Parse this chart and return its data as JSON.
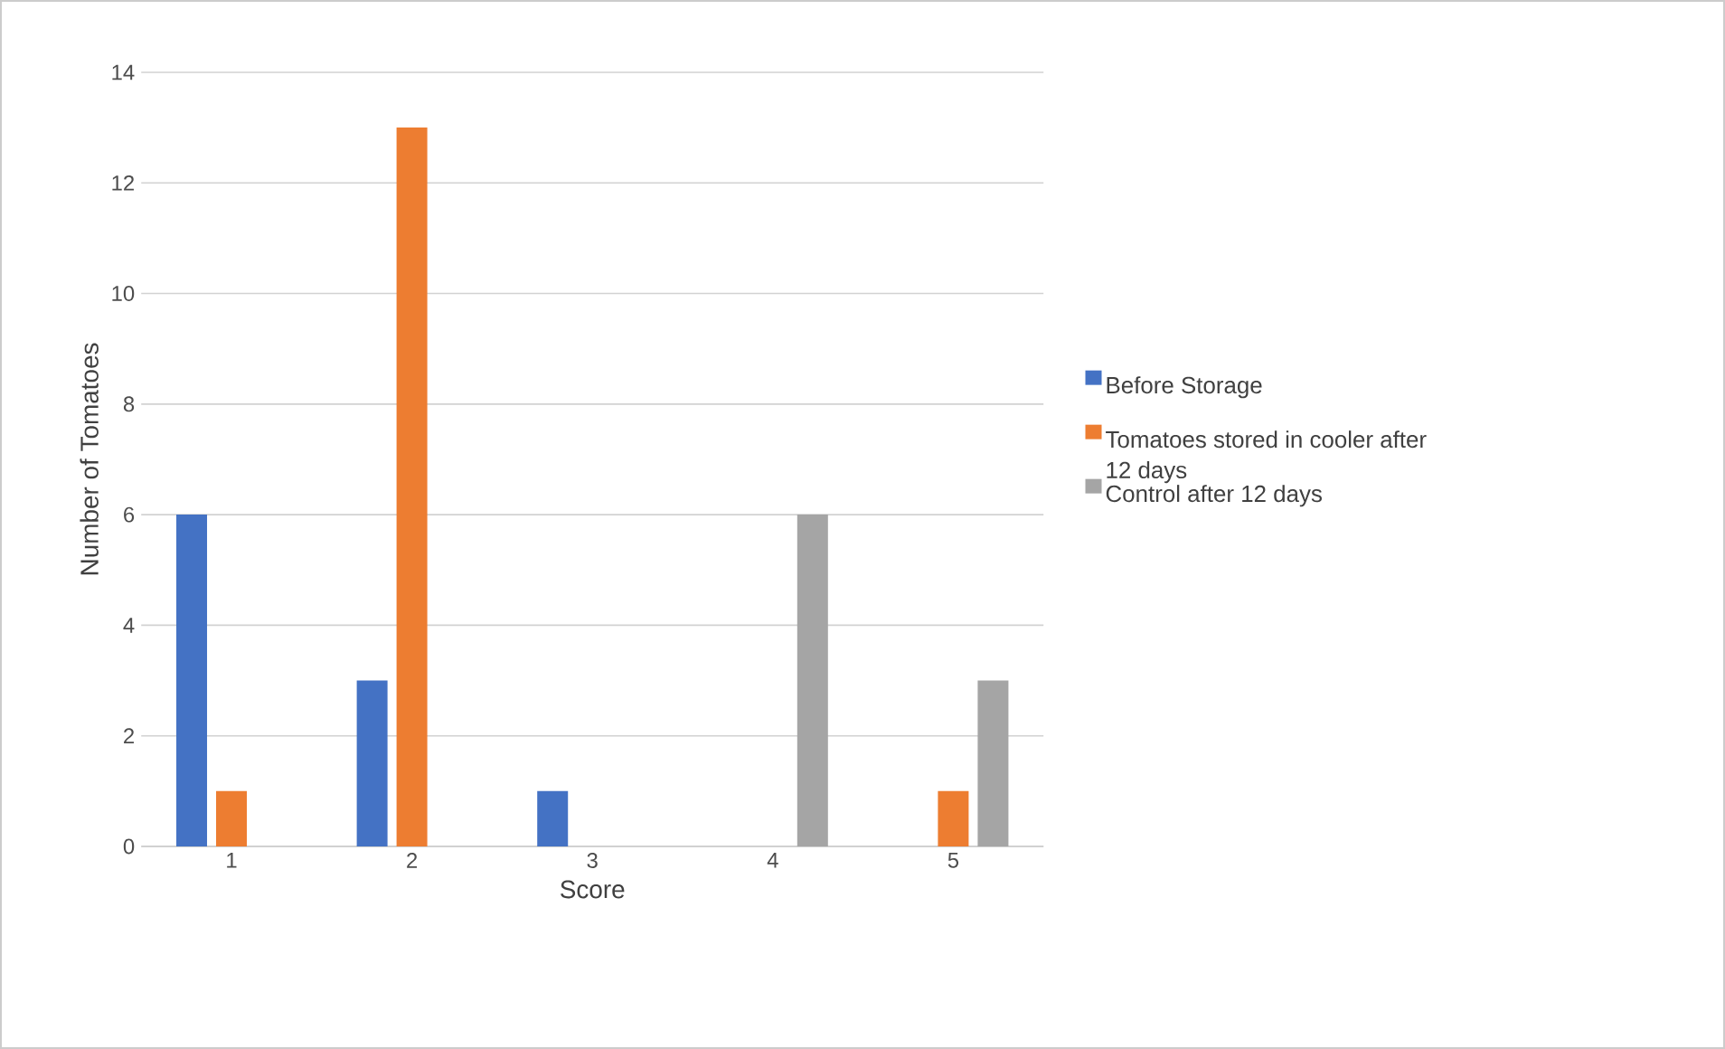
{
  "chart_data": {
    "type": "bar",
    "xlabel": "Score",
    "ylabel": "Number  of Tomatoes",
    "categories": [
      "1",
      "2",
      "3",
      "4",
      "5"
    ],
    "series": [
      {
        "name": "Before Storage",
        "color": "#4472c4",
        "values": [
          6,
          3,
          1,
          0,
          0
        ]
      },
      {
        "name": "Tomatoes stored in cooler after 12 days",
        "color": "#ed7d31",
        "values": [
          1,
          13,
          0,
          0,
          1
        ]
      },
      {
        "name": "Control after 12 days",
        "color": "#a5a5a5",
        "values": [
          0,
          0,
          0,
          6,
          3
        ]
      }
    ],
    "ylim": [
      0,
      14
    ],
    "yticks": [
      0,
      2,
      4,
      6,
      8,
      10,
      12,
      14
    ],
    "grid": "y",
    "legend": "right"
  }
}
